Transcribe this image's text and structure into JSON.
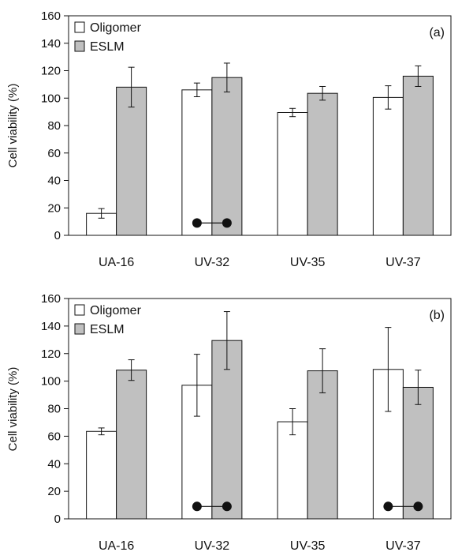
{
  "chart_data": [
    {
      "type": "bar",
      "panel_label": "(a)",
      "categories": [
        "UA-16",
        "UV-32",
        "UV-35",
        "UV-37"
      ],
      "ylabel": "Cell viability (%)",
      "ylim": [
        0,
        160
      ],
      "yticks": [
        0,
        20,
        40,
        60,
        80,
        100,
        120,
        140,
        160
      ],
      "legend_position": "top-left",
      "grid": false,
      "series": [
        {
          "name": "Oligomer",
          "color": "#ffffff",
          "values": [
            16,
            106,
            89.5,
            100.5
          ],
          "errors": [
            3.5,
            5,
            3,
            8.5
          ]
        },
        {
          "name": "ESLM",
          "color": "#c0c0c0",
          "values": [
            108,
            115,
            103.5,
            116
          ],
          "errors": [
            14.5,
            10.5,
            5,
            7.5
          ]
        }
      ],
      "significance_markers": [
        {
          "category": "UV-32",
          "value": 9
        }
      ]
    },
    {
      "type": "bar",
      "panel_label": "(b)",
      "categories": [
        "UA-16",
        "UV-32",
        "UV-35",
        "UV-37"
      ],
      "ylabel": "Cell viability (%)",
      "ylim": [
        0,
        160
      ],
      "yticks": [
        0,
        20,
        40,
        60,
        80,
        100,
        120,
        140,
        160
      ],
      "legend_position": "top-left",
      "grid": false,
      "series": [
        {
          "name": "Oligomer",
          "color": "#ffffff",
          "values": [
            63.5,
            97,
            70.5,
            108.5
          ],
          "errors": [
            2.5,
            22.5,
            9.5,
            30.5
          ]
        },
        {
          "name": "ESLM",
          "color": "#c0c0c0",
          "values": [
            108,
            129.5,
            107.5,
            95.5
          ],
          "errors": [
            7.5,
            21,
            16,
            12.5
          ]
        }
      ],
      "significance_markers": [
        {
          "category": "UV-32",
          "value": 9
        },
        {
          "category": "UV-37",
          "value": 9
        }
      ]
    }
  ]
}
